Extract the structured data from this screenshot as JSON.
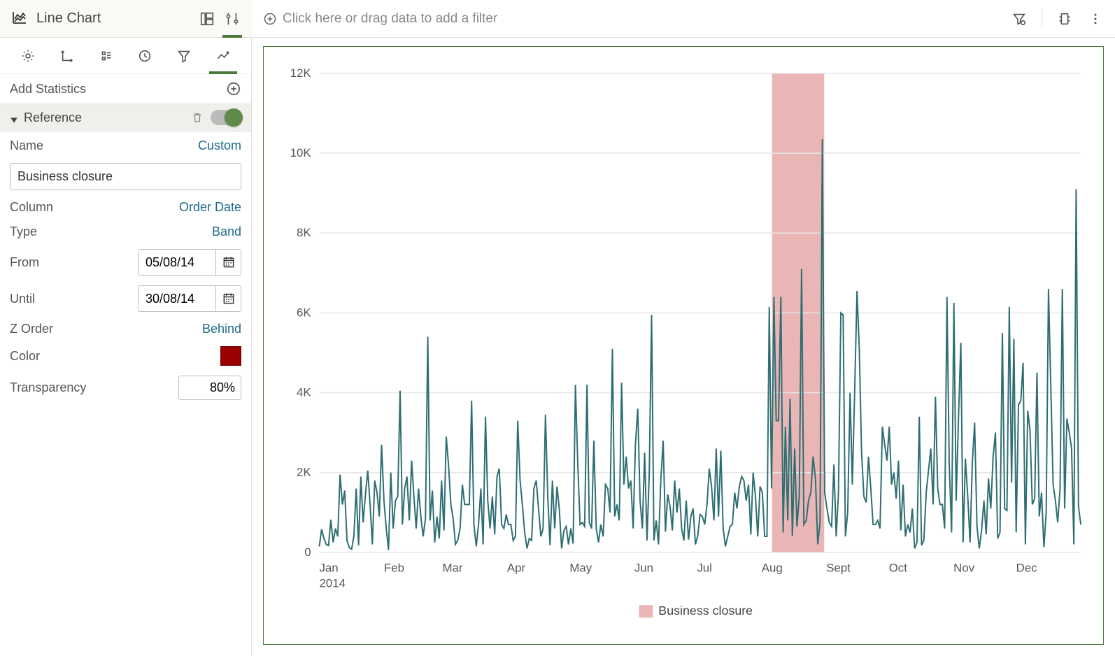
{
  "header": {
    "chart_type_label": "Line Chart"
  },
  "filter_bar": {
    "placeholder": "Click here or drag data to add a filter"
  },
  "stats_section": {
    "title": "Add Statistics"
  },
  "reference": {
    "section_label": "Reference",
    "enabled": true,
    "fields": {
      "name_label": "Name",
      "name_mode": "Custom",
      "name_value": "Business closure",
      "column_label": "Column",
      "column_value": "Order Date",
      "type_label": "Type",
      "type_value": "Band",
      "from_label": "From",
      "from_value": "05/08/14",
      "until_label": "Until",
      "until_value": "30/08/14",
      "zorder_label": "Z Order",
      "zorder_value": "Behind",
      "color_label": "Color",
      "color_value": "#9a0000",
      "transparency_label": "Transparency",
      "transparency_value": "80%"
    }
  },
  "chart": {
    "type": "line",
    "line_color": "#2e6e72",
    "line_width": 2,
    "background_color": "#ffffff",
    "grid_color": "#e6e6e6",
    "frame_color": "#4a7a3a",
    "y": {
      "min": 0,
      "max": 12000,
      "ticks": [
        0,
        2000,
        4000,
        6000,
        8000,
        10000,
        12000
      ],
      "tick_labels": [
        "0",
        "2K",
        "4K",
        "6K",
        "8K",
        "10K",
        "12K"
      ],
      "label_fontsize": 17
    },
    "x": {
      "year_label": "2014",
      "months": [
        "Jan",
        "Feb",
        "Mar",
        "Apr",
        "May",
        "Jun",
        "Jul",
        "Aug",
        "Sept",
        "Oct",
        "Nov",
        "Dec"
      ],
      "label_fontsize": 17
    },
    "reference_band": {
      "from_day": 217,
      "to_day": 242,
      "color": "#e9b5b5"
    },
    "legend": {
      "label": "Business closure",
      "swatch_color": "#e9b5b5"
    },
    "series": [
      150,
      580,
      350,
      200,
      170,
      820,
      250,
      600,
      400,
      1950,
      1200,
      1550,
      300,
      120,
      80,
      420,
      1600,
      180,
      1900,
      750,
      1450,
      2050,
      1200,
      200,
      1800,
      1500,
      900,
      2700,
      1300,
      600,
      60,
      2000,
      600,
      1300,
      1400,
      4050,
      700,
      1600,
      1900,
      800,
      2300,
      1400,
      600,
      1600,
      900,
      400,
      850,
      5400,
      800,
      1550,
      250,
      900,
      350,
      1800,
      550,
      2900,
      2200,
      1200,
      850,
      200,
      300,
      600,
      1700,
      1200,
      1200,
      1200,
      3800,
      700,
      150,
      700,
      1600,
      200,
      3400,
      1300,
      600,
      1400,
      450,
      1900,
      2100,
      700,
      600,
      950,
      700,
      700,
      300,
      400,
      3300,
      1800,
      1200,
      500,
      100,
      350,
      300,
      1600,
      1800,
      1100,
      400,
      600,
      3450,
      1400,
      180,
      1800,
      600,
      1650,
      1100,
      100,
      550,
      650,
      200,
      600,
      220,
      4200,
      2200,
      700,
      750,
      650,
      4200,
      750,
      600,
      2800,
      600,
      250,
      700,
      400,
      1700,
      1600,
      1000,
      5100,
      900,
      1200,
      800,
      4250,
      1700,
      2400,
      1600,
      1800,
      600,
      2700,
      3600,
      1300,
      600,
      2500,
      300,
      2000,
      5950,
      300,
      800,
      200,
      1800,
      2800,
      520,
      1450,
      1150,
      550,
      1800,
      1000,
      1600,
      600,
      300,
      1300,
      320,
      900,
      1100,
      200,
      420,
      950,
      900,
      700,
      1200,
      2100,
      1650,
      800,
      2600,
      900,
      2550,
      600,
      150,
      400,
      650,
      700,
      1500,
      1100,
      1650,
      1900,
      1800,
      1300,
      1700,
      450,
      2000,
      1400,
      400,
      1650,
      1500,
      400,
      400,
      6150,
      1600,
      6400,
      3300,
      3300,
      6400,
      500,
      3150,
      800,
      3850,
      420,
      2600,
      650,
      1400,
      7100,
      700,
      800,
      1300,
      1500,
      2400,
      1850,
      200,
      750,
      10350,
      1500,
      1100,
      750,
      650,
      2200,
      400,
      1500,
      6000,
      5950,
      400,
      1000,
      4000,
      1700,
      4000,
      6550,
      5100,
      2500,
      1400,
      1250,
      2400,
      1600,
      700,
      700,
      800,
      600,
      3150,
      2700,
      2300,
      3150,
      1700,
      2000,
      1350,
      2300,
      550,
      1700,
      400,
      700,
      500,
      1100,
      100,
      250,
      3400,
      180,
      300,
      1500,
      2050,
      2600,
      1200,
      3900,
      1600,
      1200,
      1200,
      600,
      6400,
      2200,
      500,
      6250,
      1300,
      3400,
      5250,
      250,
      2350,
      1400,
      250,
      2250,
      3250,
      650,
      100,
      550,
      1300,
      450,
      1850,
      1100,
      2400,
      3000,
      350,
      500,
      5500,
      1100,
      1050,
      6150,
      1750,
      5350,
      500,
      3700,
      3800,
      4750,
      200,
      3550,
      3050,
      1200,
      1350,
      4500,
      900,
      1500,
      130,
      1000,
      6600,
      4200,
      1700,
      1300,
      750,
      1600,
      6600,
      1100,
      3350,
      3000,
      2600,
      200,
      9100,
      1150,
      700
    ]
  }
}
